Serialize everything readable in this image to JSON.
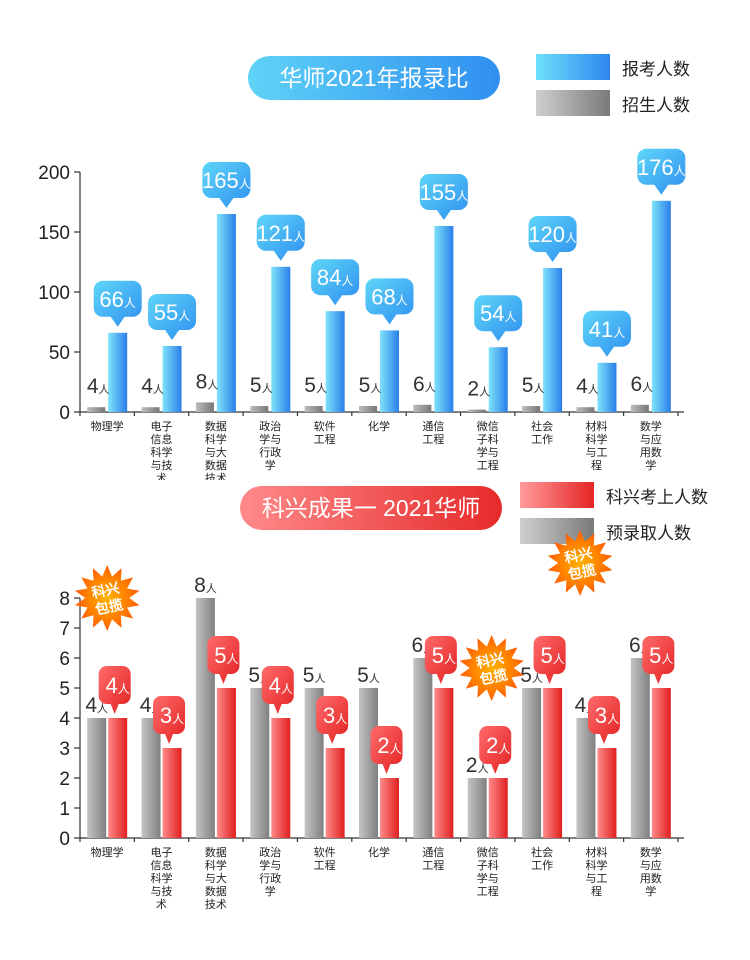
{
  "chart_data": [
    {
      "type": "bar",
      "title": "华师2021年报录比",
      "categories": [
        "物理学",
        "电子信息科学与技术",
        "数据科学与大数据技术",
        "政治学与行政学",
        "软件工程",
        "化学",
        "通信工程",
        "微信子科学与工程",
        "社会工作",
        "材料科学与工程",
        "数学与应用数学"
      ],
      "series": [
        {
          "name": "报考人数",
          "values": [
            66,
            55,
            165,
            121,
            84,
            68,
            155,
            54,
            120,
            41,
            176
          ],
          "color": "#2f95ef"
        },
        {
          "name": "招生人数",
          "values": [
            4,
            4,
            8,
            5,
            5,
            5,
            6,
            2,
            5,
            4,
            6
          ],
          "color": "#8c8c8c"
        }
      ],
      "ylim": [
        0,
        200
      ],
      "yticks": [
        0,
        50,
        100,
        150,
        200
      ],
      "unit": "人",
      "legend_position": "top-right"
    },
    {
      "type": "bar",
      "title": "科兴成果一 2021华师",
      "categories": [
        "物理学",
        "电子信息科学与技术",
        "数据科学与大数据技术",
        "政治学与行政学",
        "软件工程",
        "化学",
        "通信工程",
        "微信子科学与工程",
        "社会工作",
        "材料科学与工程",
        "数学与应用数学"
      ],
      "series": [
        {
          "name": "预录取人数",
          "values": [
            4,
            4,
            8,
            5,
            5,
            5,
            6,
            2,
            5,
            4,
            6
          ],
          "color": "#9a9a9a"
        },
        {
          "name": "科兴考上人数",
          "values": [
            4,
            3,
            5,
            4,
            3,
            2,
            5,
            2,
            5,
            3,
            5
          ],
          "color": "#ef2f2f"
        }
      ],
      "ylim": [
        0,
        8
      ],
      "yticks": [
        0,
        1,
        2,
        3,
        4,
        5,
        6,
        7,
        8
      ],
      "unit": "人",
      "annotations": [
        {
          "text": "科兴包揽",
          "category": "物理学"
        },
        {
          "text": "科兴包揽",
          "category": "微信子科学与工程"
        },
        {
          "text": "科兴包揽",
          "category": "社会工作"
        }
      ],
      "legend_position": "top-right"
    }
  ],
  "category_label_lines": [
    [
      "物理学"
    ],
    [
      "电子",
      "信息",
      "科学",
      "与技",
      "术"
    ],
    [
      "数据",
      "科学",
      "与大",
      "数据",
      "技术"
    ],
    [
      "政治",
      "学与",
      "行政",
      "学"
    ],
    [
      "软件",
      "工程"
    ],
    [
      "化学"
    ],
    [
      "通信",
      "工程"
    ],
    [
      "微信",
      "子科",
      "学与",
      "工程"
    ],
    [
      "社会",
      "工作"
    ],
    [
      "材料",
      "科学",
      "与工",
      "程"
    ],
    [
      "数学",
      "与应",
      "用数",
      "学"
    ]
  ],
  "burst_lines": [
    "科兴",
    "包揽"
  ]
}
